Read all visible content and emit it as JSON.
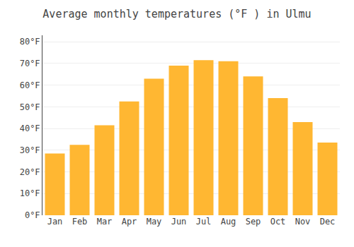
{
  "chart_data": {
    "type": "bar",
    "title": "Average monthly temperatures (°F ) in Ulmu",
    "categories": [
      "Jan",
      "Feb",
      "Mar",
      "Apr",
      "May",
      "Jun",
      "Jul",
      "Aug",
      "Sep",
      "Oct",
      "Nov",
      "Dec"
    ],
    "values": [
      28.5,
      32.5,
      41.5,
      52.5,
      63,
      69,
      71.5,
      71,
      64,
      54,
      43,
      33.5
    ],
    "color": "#FFB732",
    "ylim": [
      0,
      83
    ],
    "yticks": [
      {
        "value": 0,
        "label": "0°F"
      },
      {
        "value": 10,
        "label": "10°F"
      },
      {
        "value": 20,
        "label": "20°F"
      },
      {
        "value": 30,
        "label": "30°F"
      },
      {
        "value": 40,
        "label": "40°F"
      },
      {
        "value": 50,
        "label": "50°F"
      },
      {
        "value": 60,
        "label": "60°F"
      },
      {
        "value": 70,
        "label": "70°F"
      },
      {
        "value": 80,
        "label": "80°F"
      }
    ],
    "grid": true
  }
}
